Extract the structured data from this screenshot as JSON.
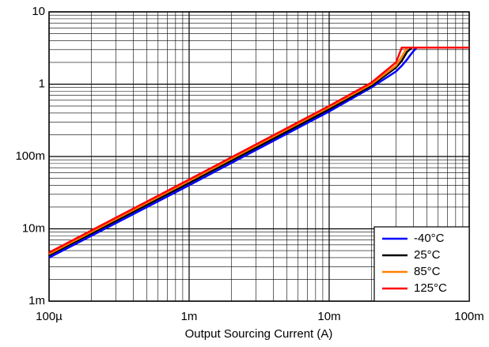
{
  "chart_data": {
    "type": "line",
    "x_label": "Output Sourcing Current (A)",
    "x": [
      0.0001,
      0.001,
      0.01,
      0.02,
      0.03,
      0.033,
      0.036,
      0.039,
      0.042,
      0.1
    ],
    "series": [
      {
        "name": "-40°C",
        "color": "#0000ff",
        "values": [
          0.004,
          0.04,
          0.42,
          0.9,
          1.5,
          1.8,
          2.2,
          2.7,
          3.2,
          3.2
        ]
      },
      {
        "name": "25°C",
        "color": "#000000",
        "values": [
          0.0043,
          0.043,
          0.45,
          0.95,
          1.7,
          2.1,
          2.8,
          3.2,
          3.2,
          3.2
        ]
      },
      {
        "name": "85°C",
        "color": "#ff8000",
        "values": [
          0.0045,
          0.046,
          0.48,
          1.0,
          1.8,
          2.4,
          3.2,
          3.2,
          3.2,
          3.2
        ]
      },
      {
        "name": "125°C",
        "color": "#ff0000",
        "values": [
          0.0047,
          0.048,
          0.5,
          1.05,
          2.0,
          3.2,
          3.2,
          3.2,
          3.2,
          3.2
        ]
      }
    ],
    "xlim": [
      0.0001,
      0.1
    ],
    "ylim": [
      0.001,
      10
    ],
    "xticks": [
      {
        "value": 0.0001,
        "label": "100µ"
      },
      {
        "value": 0.001,
        "label": "1m"
      },
      {
        "value": 0.01,
        "label": "10m"
      },
      {
        "value": 0.1,
        "label": "100m"
      }
    ],
    "yticks": [
      {
        "value": 0.001,
        "label": "1m"
      },
      {
        "value": 0.01,
        "label": "10m"
      },
      {
        "value": 0.1,
        "label": "100m"
      },
      1,
      10
    ],
    "x_log": true,
    "y_log": true,
    "grid": true,
    "minor_grid": true,
    "legend": "lower right"
  }
}
